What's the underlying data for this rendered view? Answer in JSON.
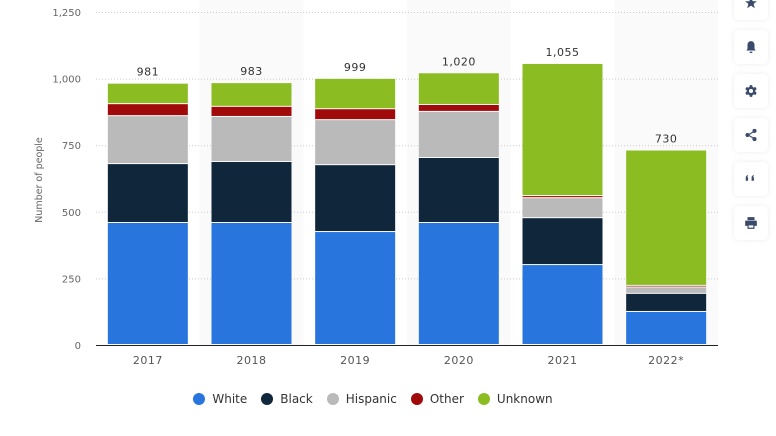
{
  "chart_data": {
    "type": "bar",
    "stacked": true,
    "title": "",
    "xlabel": "",
    "ylabel": "Number of people",
    "ylim": [
      0,
      1250
    ],
    "yticks": [
      0,
      250,
      500,
      750,
      1000,
      1250
    ],
    "ytick_labels": [
      "0",
      "250",
      "500",
      "750",
      "1,000",
      "1,250"
    ],
    "grid": true,
    "legend_position": "bottom",
    "categories": [
      "2017",
      "2018",
      "2019",
      "2020",
      "2021",
      "2022*"
    ],
    "totals": [
      "981",
      "983",
      "999",
      "1,020",
      "1,055",
      "730"
    ],
    "series": [
      {
        "name": "White",
        "color": "#2876DD",
        "values": [
          458,
          458,
          424,
          458,
          300,
          124
        ]
      },
      {
        "name": "Black",
        "color": "#10263B",
        "values": [
          221,
          229,
          251,
          244,
          176,
          68
        ]
      },
      {
        "name": "Hispanic",
        "color": "#BABABA",
        "values": [
          180,
          169,
          169,
          173,
          75,
          24
        ]
      },
      {
        "name": "Other",
        "color": "#A10A0A",
        "values": [
          45,
          38,
          41,
          26,
          8,
          6
        ]
      },
      {
        "name": "Unknown",
        "color": "#8BBC21",
        "values": [
          77,
          89,
          114,
          119,
          496,
          508
        ]
      }
    ]
  },
  "side_tools": [
    {
      "icon": "star-icon",
      "label": "Favorite"
    },
    {
      "icon": "bell-icon",
      "label": "Notifications"
    },
    {
      "icon": "gear-icon",
      "label": "Settings"
    },
    {
      "icon": "share-icon",
      "label": "Share"
    },
    {
      "icon": "quote-icon",
      "label": "Cite"
    },
    {
      "icon": "print-icon",
      "label": "Print"
    }
  ]
}
